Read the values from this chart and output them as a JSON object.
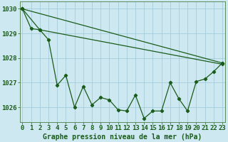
{
  "x_all": [
    0,
    1,
    2,
    3,
    4,
    5,
    6,
    7,
    8,
    9,
    10,
    11,
    12,
    13,
    14,
    15,
    16,
    17,
    18,
    19,
    20,
    21,
    22,
    23
  ],
  "line_straight1": {
    "x": [
      0,
      23
    ],
    "y": [
      1030.0,
      1027.8
    ]
  },
  "line_straight2": {
    "x": [
      0,
      2,
      23
    ],
    "y": [
      1030.0,
      1029.15,
      1027.75
    ]
  },
  "line_zigzag": {
    "x": [
      0,
      1,
      2,
      3,
      4,
      5,
      6,
      7,
      8,
      9,
      10,
      11,
      12,
      13,
      14,
      15,
      16,
      17,
      18,
      19,
      20,
      21,
      22,
      23
    ],
    "y": [
      1030.0,
      1029.2,
      1029.15,
      1028.75,
      1026.9,
      1027.3,
      1026.0,
      1026.85,
      1026.1,
      1026.4,
      1026.3,
      1025.9,
      1025.85,
      1026.5,
      1025.55,
      1025.85,
      1025.85,
      1027.0,
      1026.35,
      1025.85,
      1027.05,
      1027.15,
      1027.45,
      1027.8
    ]
  },
  "ylim": [
    1025.4,
    1030.3
  ],
  "xlim": [
    -0.3,
    23.3
  ],
  "yticks": [
    1026,
    1027,
    1028,
    1029,
    1030
  ],
  "xticks": [
    0,
    1,
    2,
    3,
    4,
    5,
    6,
    7,
    8,
    9,
    10,
    11,
    12,
    13,
    14,
    15,
    16,
    17,
    18,
    19,
    20,
    21,
    22,
    23
  ],
  "xlabel": "Graphe pression niveau de la mer (hPa)",
  "bg_color": "#cde8f0",
  "line_color": "#1a5c1a",
  "grid_color": "#9cc8d5",
  "axis_color": "#5a8a5a",
  "tick_color": "#1a5c1a",
  "label_color": "#1a5c1a",
  "font_size_xlabel": 7.0,
  "font_size_ticks": 6.5,
  "lw": 0.9,
  "ms": 2.2
}
